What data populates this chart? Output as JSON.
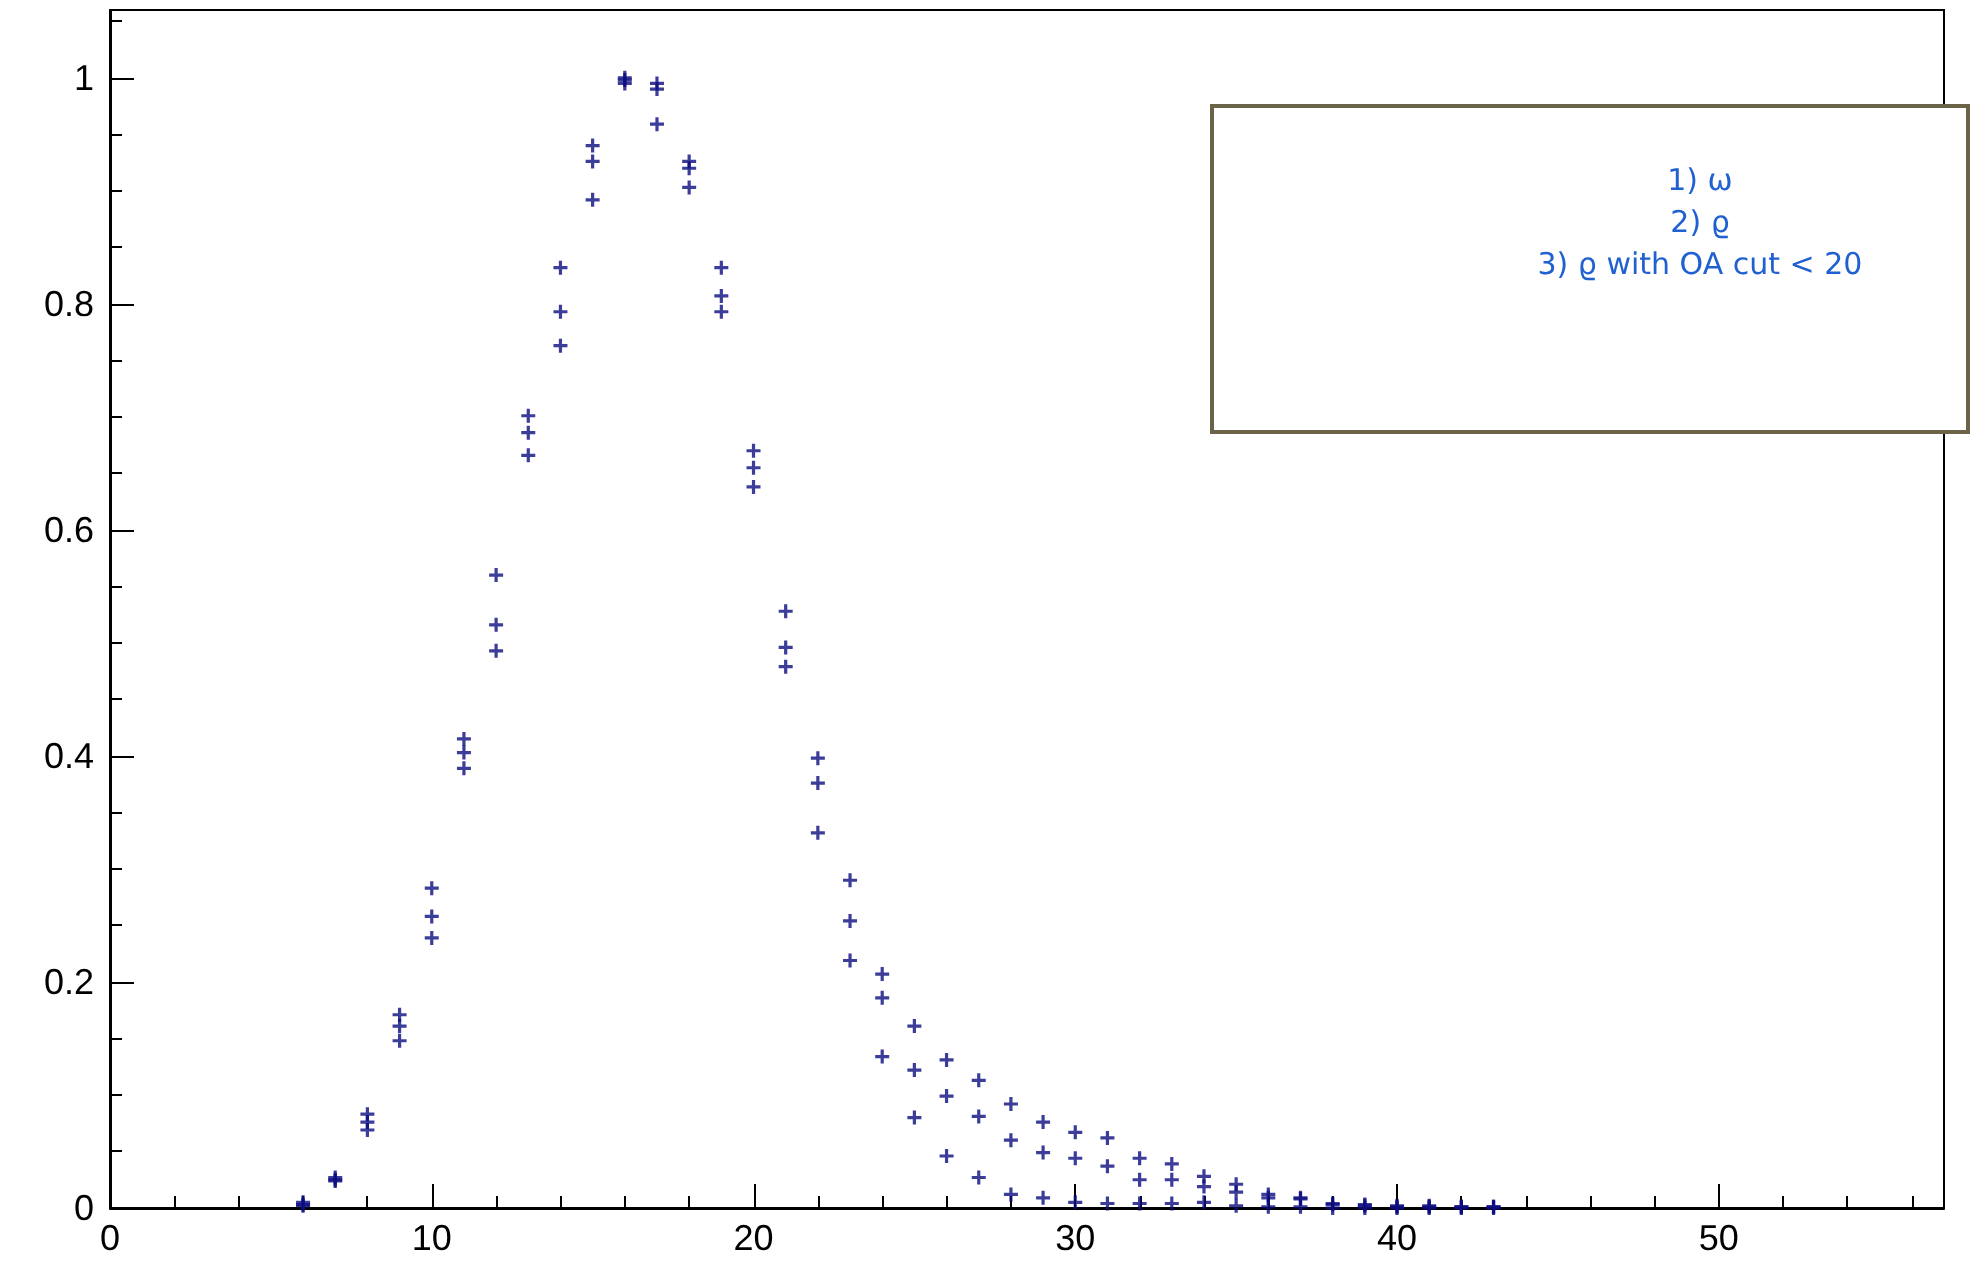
{
  "chart_data": {
    "type": "scatter",
    "x": [
      6,
      7,
      8,
      9,
      10,
      11,
      12,
      13,
      14,
      15,
      16,
      17,
      18,
      19,
      20,
      21,
      22,
      23,
      24,
      25,
      26,
      27,
      28,
      29,
      30,
      31,
      32,
      33,
      34,
      35,
      36,
      37,
      38,
      39,
      40,
      41,
      42,
      43
    ],
    "series": [
      {
        "color": "#0b0b80",
        "values": [
          0.005,
          0.027,
          0.083,
          0.171,
          0.283,
          0.415,
          0.56,
          0.701,
          0.832,
          0.94,
          1.0,
          0.995,
          0.926,
          0.832,
          0.67,
          0.528,
          0.398,
          0.29,
          0.207,
          0.161,
          0.131,
          0.113,
          0.092,
          0.076,
          0.067,
          0.062,
          0.044,
          0.039,
          0.028,
          0.021,
          0.012,
          0.009,
          0.004,
          0.003,
          0.002,
          0.002,
          0.001,
          0.001
        ]
      },
      {
        "color": "#0b0b80",
        "values": [
          0.003,
          0.025,
          0.076,
          0.161,
          0.258,
          0.403,
          0.516,
          0.686,
          0.793,
          0.926,
          0.998,
          0.99,
          0.92,
          0.807,
          0.655,
          0.496,
          0.376,
          0.254,
          0.186,
          0.122,
          0.099,
          0.081,
          0.06,
          0.049,
          0.044,
          0.037,
          0.025,
          0.025,
          0.019,
          0.014,
          0.009,
          0.008,
          0.003,
          0.002,
          0.001,
          0.001,
          0.001,
          0.001
        ]
      },
      {
        "color": "#0b0b80",
        "values": [
          0.002,
          0.024,
          0.069,
          0.148,
          0.239,
          0.389,
          0.493,
          0.666,
          0.763,
          0.892,
          0.995,
          0.959,
          0.903,
          0.793,
          0.638,
          0.479,
          0.332,
          0.219,
          0.134,
          0.08,
          0.046,
          0.027,
          0.012,
          0.009,
          0.005,
          0.004,
          0.004,
          0.004,
          0.005,
          0.002,
          0.001,
          0.001,
          0,
          0,
          0,
          0,
          0,
          0
        ]
      }
    ],
    "xlim": [
      0,
      57
    ],
    "xticks": [
      0,
      10,
      20,
      30,
      40,
      50
    ],
    "ylim": [
      0,
      1.06
    ],
    "yticks": [
      0,
      0.2,
      0.4,
      0.6,
      0.8,
      1
    ],
    "grid": false,
    "marker": "cross",
    "annotations": [
      "1) ω",
      "2) ϱ",
      "3) ϱ with OA cut < 20"
    ]
  }
}
